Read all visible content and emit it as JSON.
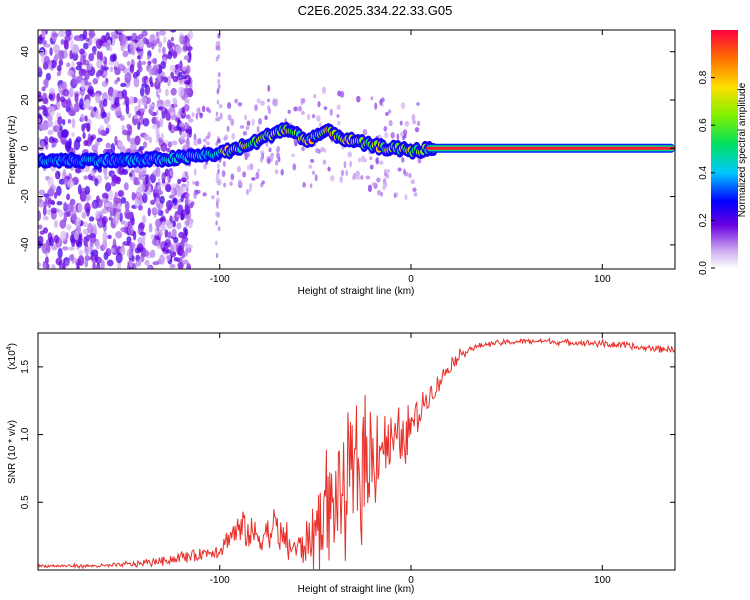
{
  "title": "C2E6.2025.334.22.33.G05",
  "chart_data": [
    {
      "type": "heatmap",
      "xlabel": "Height of straight line (km)",
      "ylabel": "Frequency (Hz)",
      "xlim": [
        -195,
        138
      ],
      "ylim": [
        -50,
        49
      ],
      "xticks": [
        -100,
        0,
        100
      ],
      "yticks": [
        -40,
        -20,
        0,
        20,
        40
      ],
      "ridge": {
        "x": [
          -195,
          -160,
          -140,
          -120,
          -100,
          -90,
          -80,
          -70,
          -65,
          -60,
          -55,
          -50,
          -45,
          -40,
          -35,
          -30,
          -20,
          -10,
          0,
          5,
          10,
          138
        ],
        "y": [
          -5,
          -5,
          -5,
          -4,
          -2,
          0,
          3,
          7,
          8,
          6,
          3,
          5,
          7,
          6,
          4,
          3,
          1,
          0,
          -1,
          -1,
          0,
          0
        ]
      },
      "colorbar": {
        "label": "Normalized spectral amplitude",
        "ticks": [
          0.0,
          0.2,
          0.4,
          0.6,
          0.8
        ],
        "range": [
          0,
          1
        ]
      }
    },
    {
      "type": "line",
      "xlabel": "Height of straight line (km)",
      "ylabel": "SNR (10 * v/v)",
      "y_multiplier": "(x10",
      "y_multiplier_exp": "4",
      "y_multiplier_close": ")",
      "xlim": [
        -195,
        138
      ],
      "ylim": [
        0,
        1.75
      ],
      "xticks": [
        -100,
        0,
        100
      ],
      "yticks": [
        0.5,
        1.0,
        1.5
      ],
      "series": [
        {
          "name": "SNR",
          "color": "#e8312b",
          "x": [
            -195,
            -160,
            -140,
            -125,
            -110,
            -100,
            -95,
            -90,
            -80,
            -70,
            -65,
            -60,
            -55,
            -50,
            -45,
            -40,
            -35,
            -30,
            -25,
            -20,
            -15,
            -10,
            -5,
            0,
            5,
            10,
            15,
            20,
            25,
            30,
            40,
            50,
            60,
            70,
            80,
            90,
            100,
            110,
            120,
            138
          ],
          "y": [
            0.03,
            0.03,
            0.05,
            0.08,
            0.12,
            0.15,
            0.25,
            0.3,
            0.25,
            0.3,
            0.2,
            0.15,
            0.2,
            0.3,
            0.45,
            0.5,
            0.6,
            0.65,
            0.75,
            0.85,
            0.95,
            0.95,
            0.95,
            1.05,
            1.2,
            1.3,
            1.4,
            1.5,
            1.58,
            1.63,
            1.67,
            1.68,
            1.69,
            1.69,
            1.68,
            1.68,
            1.67,
            1.66,
            1.64,
            1.63
          ],
          "noise": [
            0.01,
            0.01,
            0.02,
            0.03,
            0.04,
            0.05,
            0.08,
            0.12,
            0.12,
            0.12,
            0.1,
            0.08,
            0.15,
            0.2,
            0.3,
            0.35,
            0.35,
            0.35,
            0.35,
            0.3,
            0.25,
            0.2,
            0.15,
            0.12,
            0.1,
            0.08,
            0.06,
            0.05,
            0.03,
            0.02,
            0.015,
            0.015,
            0.015,
            0.015,
            0.015,
            0.02,
            0.02,
            0.02,
            0.02,
            0.02
          ]
        }
      ]
    }
  ]
}
